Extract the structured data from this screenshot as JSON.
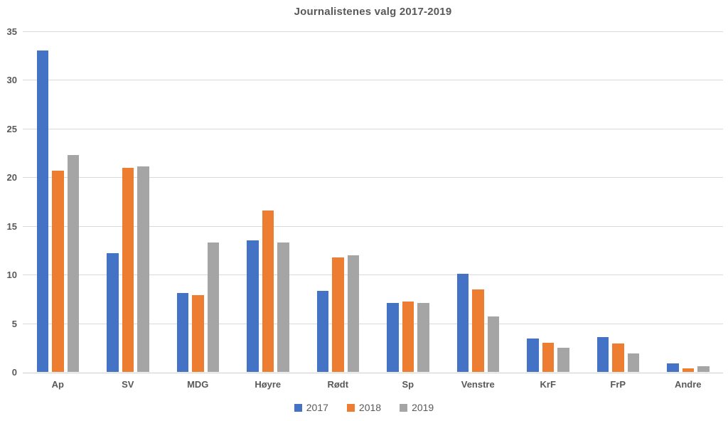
{
  "chart_data": {
    "type": "bar",
    "title": "Journalistenes valg 2017-2019",
    "categories": [
      "Ap",
      "SV",
      "MDG",
      "Høyre",
      "Rødt",
      "Sp",
      "Venstre",
      "KrF",
      "FrP",
      "Andre"
    ],
    "series": [
      {
        "name": "2017",
        "color": "#4472c4",
        "values": [
          33.0,
          12.2,
          8.1,
          13.5,
          8.3,
          7.1,
          10.1,
          3.4,
          3.6,
          0.9
        ]
      },
      {
        "name": "2018",
        "color": "#ed7d31",
        "values": [
          20.7,
          21.0,
          7.9,
          16.6,
          11.8,
          7.2,
          8.5,
          3.0,
          2.9,
          0.4
        ]
      },
      {
        "name": "2019",
        "color": "#a5a5a5",
        "values": [
          22.3,
          21.1,
          13.3,
          13.3,
          12.0,
          7.1,
          5.7,
          2.5,
          1.9,
          0.6
        ]
      }
    ],
    "xlabel": "",
    "ylabel": "",
    "ylim": [
      0,
      35
    ],
    "ytick_step": 5,
    "ytick_labels": [
      "0",
      "5",
      "10",
      "15",
      "20",
      "25",
      "30",
      "35"
    ],
    "grid": true,
    "legend_position": "bottom",
    "colors": {
      "text": "#595959",
      "gridline": "#d9d9d9",
      "background": "#ffffff"
    }
  }
}
